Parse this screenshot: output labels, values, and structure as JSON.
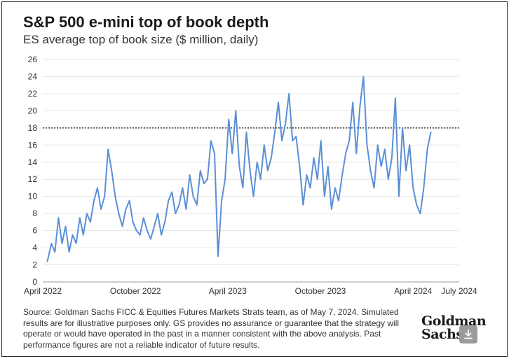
{
  "chart_data": {
    "type": "line",
    "title": "S&P 500 e-mini top of book depth",
    "subtitle": "ES average top of book size ($ million, daily)",
    "xlabel": "",
    "ylabel": "",
    "x_ticks": [
      "April 2022",
      "October 2022",
      "April 2023",
      "October 2023",
      "April 2024",
      "July 2024"
    ],
    "xlim": [
      "2022-04",
      "2024-07"
    ],
    "ylim": [
      0,
      26
    ],
    "y_ticks": [
      0,
      2,
      4,
      6,
      8,
      10,
      12,
      14,
      16,
      18,
      20,
      22,
      24,
      26
    ],
    "grid": "horizontal",
    "reference_line": {
      "y": 18,
      "style": "dotted"
    },
    "series": [
      {
        "color": "#5b8fd6",
        "x": [
          "2022-04-10",
          "2022-04-18",
          "2022-04-25",
          "2022-05-02",
          "2022-05-09",
          "2022-05-16",
          "2022-05-23",
          "2022-05-30",
          "2022-06-06",
          "2022-06-13",
          "2022-06-20",
          "2022-06-27",
          "2022-07-04",
          "2022-07-11",
          "2022-07-18",
          "2022-07-25",
          "2022-08-01",
          "2022-08-08",
          "2022-08-15",
          "2022-08-22",
          "2022-08-29",
          "2022-09-05",
          "2022-09-12",
          "2022-09-19",
          "2022-09-26",
          "2022-10-03",
          "2022-10-10",
          "2022-10-17",
          "2022-10-24",
          "2022-10-31",
          "2022-11-07",
          "2022-11-14",
          "2022-11-21",
          "2022-11-28",
          "2022-12-05",
          "2022-12-12",
          "2022-12-19",
          "2022-12-26",
          "2023-01-02",
          "2023-01-09",
          "2023-01-16",
          "2023-01-23",
          "2023-01-30",
          "2023-02-06",
          "2023-02-13",
          "2023-02-20",
          "2023-02-27",
          "2023-03-06",
          "2023-03-13",
          "2023-03-20",
          "2023-03-27",
          "2023-04-03",
          "2023-04-10",
          "2023-04-17",
          "2023-04-24",
          "2023-05-01",
          "2023-05-08",
          "2023-05-15",
          "2023-05-22",
          "2023-05-29",
          "2023-06-05",
          "2023-06-12",
          "2023-06-19",
          "2023-06-26",
          "2023-07-03",
          "2023-07-10",
          "2023-07-17",
          "2023-07-24",
          "2023-07-31",
          "2023-08-07",
          "2023-08-14",
          "2023-08-21",
          "2023-08-28",
          "2023-09-04",
          "2023-09-11",
          "2023-09-18",
          "2023-09-25",
          "2023-10-02",
          "2023-10-09",
          "2023-10-16",
          "2023-10-23",
          "2023-10-30",
          "2023-11-06",
          "2023-11-13",
          "2023-11-20",
          "2023-11-27",
          "2023-12-04",
          "2023-12-11",
          "2023-12-18",
          "2023-12-25",
          "2024-01-01",
          "2024-01-08",
          "2024-01-15",
          "2024-01-22",
          "2024-01-29",
          "2024-02-05",
          "2024-02-12",
          "2024-02-19",
          "2024-02-26",
          "2024-03-04",
          "2024-03-11",
          "2024-03-18",
          "2024-03-25",
          "2024-04-01",
          "2024-04-08",
          "2024-04-15",
          "2024-04-22",
          "2024-04-29",
          "2024-05-06"
        ],
        "values": [
          2.4,
          4.5,
          3.5,
          7.5,
          4.5,
          6.5,
          3.5,
          5.5,
          4.5,
          7.5,
          5.5,
          8.0,
          7.0,
          9.5,
          11.0,
          8.5,
          10.0,
          15.5,
          13.0,
          10.0,
          8.0,
          6.5,
          8.5,
          9.5,
          7.0,
          6.0,
          5.5,
          7.5,
          6.0,
          5.0,
          6.5,
          8.0,
          5.5,
          7.0,
          9.5,
          10.5,
          8.0,
          9.0,
          11.0,
          8.5,
          12.5,
          10.0,
          9.0,
          13.0,
          11.5,
          12.0,
          16.5,
          15.0,
          3.0,
          9.5,
          12.0,
          19.0,
          15.0,
          20.0,
          13.5,
          11.0,
          17.5,
          13.0,
          10.0,
          14.0,
          12.0,
          16.0,
          13.0,
          14.5,
          17.5,
          21.0,
          16.5,
          18.5,
          22.0,
          16.5,
          17.0,
          13.5,
          9.0,
          12.5,
          11.0,
          14.5,
          12.0,
          16.5,
          10.0,
          13.5,
          8.5,
          11.0,
          9.5,
          12.5,
          15.0,
          16.5,
          21.0,
          15.0,
          20.5,
          24.0,
          16.0,
          13.0,
          11.0,
          16.0,
          13.5,
          15.5,
          12.0,
          14.5,
          21.5,
          10.0,
          18.0,
          13.0,
          16.0,
          11.0,
          9.0,
          8.0,
          11.0,
          15.5,
          17.5
        ]
      }
    ]
  },
  "source_note": "Source: Goldman Sachs FICC & Equities Futures Markets Strats team, as of May 7, 2024. Simulated results are for illustrative purposes only. GS provides no assurance or guarantee that the strategy will operate or would have operated in the past in a manner consistent with the above analysis. Past performance figures are not a reliable indicator of future results.",
  "logo": {
    "line1": "Goldman",
    "line2": "Sachs"
  },
  "download_icon": "download-icon"
}
